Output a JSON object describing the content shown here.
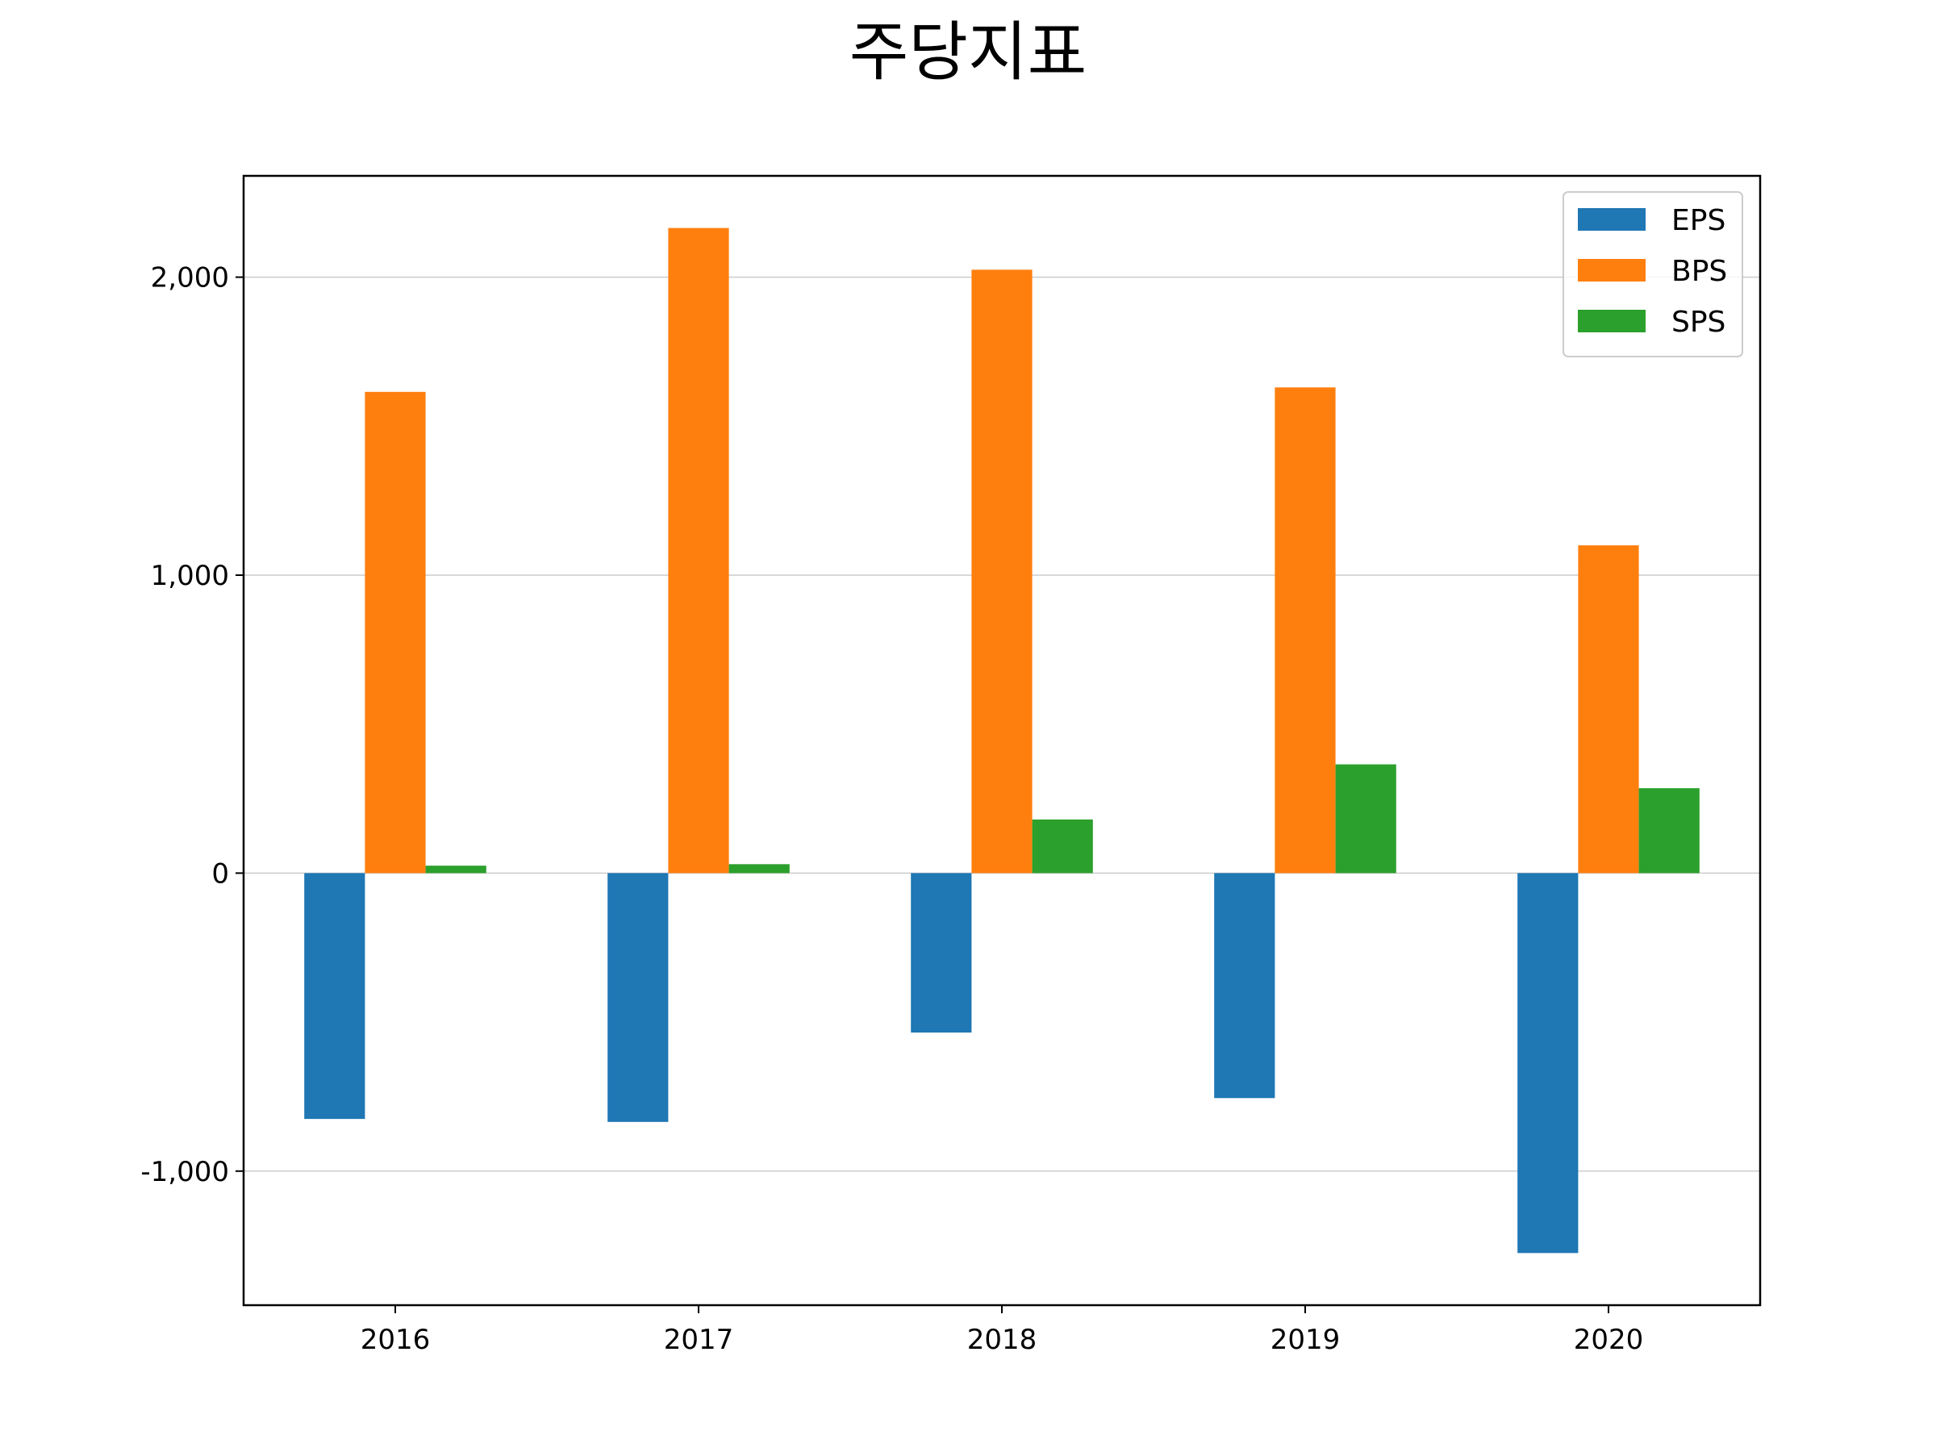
{
  "chart_data": {
    "type": "bar",
    "title": "주당지표",
    "xlabel": "",
    "ylabel": "",
    "categories": [
      "2016",
      "2017",
      "2018",
      "2019",
      "2020"
    ],
    "series": [
      {
        "name": "EPS",
        "color": "#1f77b4",
        "values": [
          -825,
          -835,
          -535,
          -755,
          -1275
        ]
      },
      {
        "name": "BPS",
        "color": "#ff7f0e",
        "values": [
          1615,
          2165,
          2025,
          1630,
          1100
        ]
      },
      {
        "name": "SPS",
        "color": "#2ca02c",
        "values": [
          25,
          30,
          180,
          365,
          285
        ]
      }
    ],
    "ylim": [
      -1450,
      2340
    ],
    "yticks": [
      -1000,
      0,
      1000,
      2000
    ],
    "ytick_labels": [
      "-1,000",
      "0",
      "1,000",
      "2,000"
    ],
    "grid": "y",
    "legend": {
      "position": "upper-right",
      "entries": [
        "EPS",
        "BPS",
        "SPS"
      ]
    }
  }
}
